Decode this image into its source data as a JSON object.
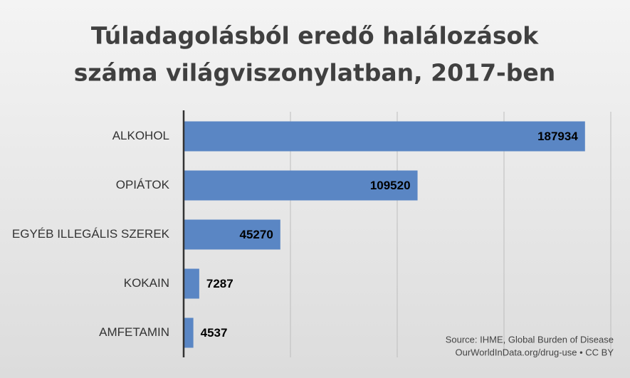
{
  "chart_data": {
    "type": "bar",
    "orientation": "horizontal",
    "title": [
      "Túladagolásból eredő halálozások",
      "száma világviszonylatban, 2017-ben"
    ],
    "categories": [
      "ALKOHOL",
      "OPIÁTOK",
      "EGYÉB ILLEGÁLIS SZEREK",
      "KOKAIN",
      "AMFETAMIN"
    ],
    "values": [
      187934,
      109520,
      45270,
      7287,
      4537
    ],
    "color": "#5a86c4",
    "xlim": [
      0,
      200000
    ],
    "xticks": [
      50000,
      100000,
      150000,
      200000
    ],
    "grid": true,
    "source": [
      "Source: IHME, Global Burden of Disease",
      "OurWorldInData.org/drug-use • CC BY"
    ]
  }
}
